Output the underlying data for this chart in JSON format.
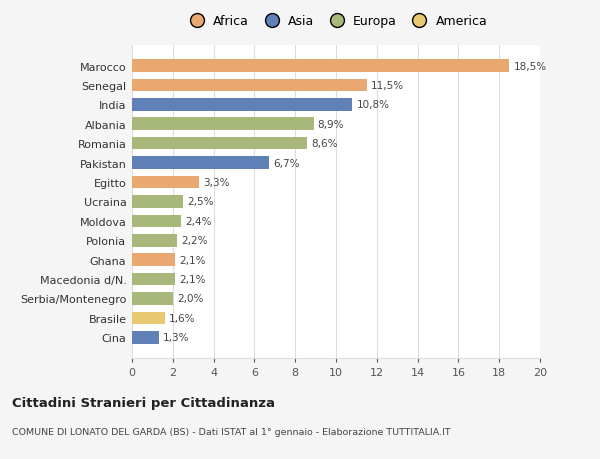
{
  "categories": [
    "Cina",
    "Brasile",
    "Serbia/Montenegro",
    "Macedonia d/N.",
    "Ghana",
    "Polonia",
    "Moldova",
    "Ucraina",
    "Egitto",
    "Pakistan",
    "Romania",
    "Albania",
    "India",
    "Senegal",
    "Marocco"
  ],
  "values": [
    1.3,
    1.6,
    2.0,
    2.1,
    2.1,
    2.2,
    2.4,
    2.5,
    3.3,
    6.7,
    8.6,
    8.9,
    10.8,
    11.5,
    18.5
  ],
  "labels": [
    "1,3%",
    "1,6%",
    "2,0%",
    "2,1%",
    "2,1%",
    "2,2%",
    "2,4%",
    "2,5%",
    "3,3%",
    "6,7%",
    "8,6%",
    "8,9%",
    "10,8%",
    "11,5%",
    "18,5%"
  ],
  "colors": [
    "#6080b8",
    "#e8c870",
    "#a8b87a",
    "#a8b87a",
    "#e8a870",
    "#a8b87a",
    "#a8b87a",
    "#a8b87a",
    "#e8a870",
    "#6080b8",
    "#a8b87a",
    "#a8b87a",
    "#6080b8",
    "#e8a870",
    "#e8a870"
  ],
  "legend_labels": [
    "Africa",
    "Asia",
    "Europa",
    "America"
  ],
  "legend_colors": [
    "#e8a870",
    "#6080b8",
    "#a8b87a",
    "#e8c870"
  ],
  "title1": "Cittadini Stranieri per Cittadinanza",
  "title2": "COMUNE DI LONATO DEL GARDA (BS) - Dati ISTAT al 1° gennaio - Elaborazione TUTTITALIA.IT",
  "xlim": [
    0,
    20
  ],
  "xticks": [
    0,
    2,
    4,
    6,
    8,
    10,
    12,
    14,
    16,
    18,
    20
  ],
  "background_color": "#f5f5f5",
  "bar_background": "#ffffff",
  "grid_color": "#dddddd"
}
